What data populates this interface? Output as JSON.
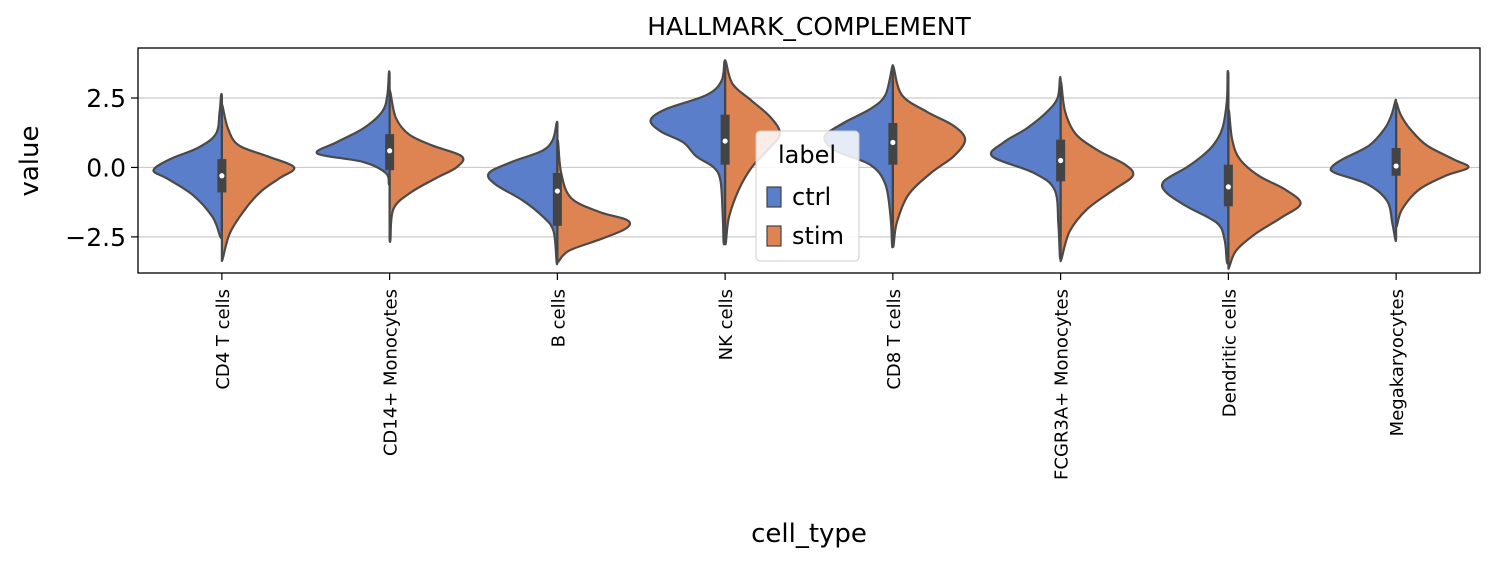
{
  "chart_data": {
    "type": "violin",
    "title": "HALLMARK_COMPLEMENT",
    "xlabel": "cell_type",
    "ylabel": "value",
    "ylim": [
      -3.8,
      4.3
    ],
    "yticks": [
      -2.5,
      0.0,
      2.5
    ],
    "ytick_labels": [
      "−2.5",
      "0.0",
      "2.5"
    ],
    "grid": "horizontal",
    "split": true,
    "categories": [
      "CD4 T cells",
      "CD14+ Monocytes",
      "B cells",
      "NK cells",
      "CD8 T cells",
      "FCGR3A+ Monocytes",
      "Dendritic cells",
      "Megakaryocytes"
    ],
    "legend": {
      "title": "label",
      "position": "center",
      "entries": [
        {
          "name": "ctrl",
          "color": "#5a7ec9"
        },
        {
          "name": "stim",
          "color": "#dd8452"
        }
      ]
    },
    "series": [
      {
        "name": "ctrl",
        "color": "#5a7ec9",
        "violins": [
          {
            "min": -2.5,
            "max": 2.6,
            "profile": [
              [
                -2.5,
                0.02
              ],
              [
                -1.8,
                0.12
              ],
              [
                -1.0,
                0.38
              ],
              [
                -0.4,
                0.72
              ],
              [
                -0.1,
                0.9
              ],
              [
                0.3,
                0.68
              ],
              [
                0.7,
                0.32
              ],
              [
                1.2,
                0.08
              ],
              [
                2.0,
                0.03
              ],
              [
                2.6,
                0.01
              ]
            ]
          },
          {
            "min": -0.6,
            "max": 3.4,
            "profile": [
              [
                -0.6,
                0.01
              ],
              [
                -0.2,
                0.05
              ],
              [
                0.2,
                0.35
              ],
              [
                0.5,
                0.95
              ],
              [
                0.9,
                0.7
              ],
              [
                1.4,
                0.35
              ],
              [
                2.0,
                0.1
              ],
              [
                2.6,
                0.03
              ],
              [
                3.4,
                0.01
              ]
            ]
          },
          {
            "min": -3.4,
            "max": 1.6,
            "profile": [
              [
                -3.4,
                0.01
              ],
              [
                -2.3,
                0.05
              ],
              [
                -1.8,
                0.18
              ],
              [
                -1.2,
                0.45
              ],
              [
                -0.6,
                0.82
              ],
              [
                -0.2,
                0.9
              ],
              [
                0.2,
                0.6
              ],
              [
                0.6,
                0.2
              ],
              [
                1.0,
                0.06
              ],
              [
                1.6,
                0.01
              ]
            ]
          },
          {
            "min": -2.7,
            "max": 3.8,
            "profile": [
              [
                -2.7,
                0.02
              ],
              [
                -1.8,
                0.03
              ],
              [
                -0.5,
                0.06
              ],
              [
                0.0,
                0.15
              ],
              [
                0.4,
                0.38
              ],
              [
                0.9,
                0.55
              ],
              [
                1.3,
                0.85
              ],
              [
                1.7,
                0.98
              ],
              [
                2.1,
                0.78
              ],
              [
                2.6,
                0.25
              ],
              [
                3.1,
                0.05
              ],
              [
                3.8,
                0.01
              ]
            ]
          },
          {
            "min": -2.8,
            "max": 3.6,
            "profile": [
              [
                -2.8,
                0.01
              ],
              [
                -1.8,
                0.03
              ],
              [
                -0.6,
                0.1
              ],
              [
                0.1,
                0.3
              ],
              [
                0.6,
                0.75
              ],
              [
                1.1,
                0.9
              ],
              [
                1.6,
                0.65
              ],
              [
                2.1,
                0.3
              ],
              [
                2.6,
                0.1
              ],
              [
                3.6,
                0.01
              ]
            ]
          },
          {
            "min": -3.2,
            "max": 3.2,
            "profile": [
              [
                -3.2,
                0.01
              ],
              [
                -2.0,
                0.03
              ],
              [
                -0.8,
                0.08
              ],
              [
                -0.2,
                0.35
              ],
              [
                0.4,
                0.9
              ],
              [
                0.9,
                0.75
              ],
              [
                1.4,
                0.45
              ],
              [
                2.0,
                0.18
              ],
              [
                2.5,
                0.04
              ],
              [
                3.2,
                0.01
              ]
            ]
          },
          {
            "min": -3.4,
            "max": 3.4,
            "profile": [
              [
                -3.4,
                0.02
              ],
              [
                -2.6,
                0.05
              ],
              [
                -2.0,
                0.15
              ],
              [
                -1.4,
                0.55
              ],
              [
                -0.9,
                0.82
              ],
              [
                -0.5,
                0.85
              ],
              [
                0.0,
                0.55
              ],
              [
                0.4,
                0.35
              ],
              [
                0.8,
                0.2
              ],
              [
                1.4,
                0.08
              ],
              [
                2.4,
                0.02
              ],
              [
                3.4,
                0.01
              ]
            ]
          },
          {
            "min": -2.6,
            "max": 2.4,
            "profile": [
              [
                -2.6,
                0.01
              ],
              [
                -2.0,
                0.05
              ],
              [
                -1.2,
                0.12
              ],
              [
                -0.6,
                0.38
              ],
              [
                -0.2,
                0.8
              ],
              [
                0.0,
                0.85
              ],
              [
                0.3,
                0.7
              ],
              [
                0.8,
                0.35
              ],
              [
                1.4,
                0.15
              ],
              [
                1.9,
                0.06
              ],
              [
                2.4,
                0.01
              ]
            ]
          }
        ]
      },
      {
        "name": "stim",
        "color": "#dd8452",
        "violins": [
          {
            "min": -3.3,
            "max": 2.2,
            "profile": [
              [
                -3.3,
                0.01
              ],
              [
                -2.4,
                0.1
              ],
              [
                -1.6,
                0.28
              ],
              [
                -0.9,
                0.5
              ],
              [
                -0.4,
                0.75
              ],
              [
                0.0,
                0.95
              ],
              [
                0.4,
                0.6
              ],
              [
                0.8,
                0.22
              ],
              [
                1.4,
                0.08
              ],
              [
                2.2,
                0.01
              ]
            ]
          },
          {
            "min": -2.6,
            "max": 2.7,
            "profile": [
              [
                -2.6,
                0.01
              ],
              [
                -1.5,
                0.05
              ],
              [
                -0.9,
                0.28
              ],
              [
                -0.4,
                0.6
              ],
              [
                0.0,
                0.88
              ],
              [
                0.4,
                0.95
              ],
              [
                0.8,
                0.55
              ],
              [
                1.2,
                0.25
              ],
              [
                1.8,
                0.08
              ],
              [
                2.7,
                0.01
              ]
            ]
          },
          {
            "min": -3.4,
            "max": 0.9,
            "profile": [
              [
                -3.4,
                0.01
              ],
              [
                -3.0,
                0.15
              ],
              [
                -2.6,
                0.55
              ],
              [
                -2.2,
                0.9
              ],
              [
                -1.9,
                0.92
              ],
              [
                -1.6,
                0.55
              ],
              [
                -1.1,
                0.18
              ],
              [
                -0.2,
                0.05
              ],
              [
                0.9,
                0.01
              ]
            ]
          },
          {
            "min": -2.7,
            "max": 3.8,
            "profile": [
              [
                -2.7,
                0.01
              ],
              [
                -1.8,
                0.05
              ],
              [
                -0.8,
                0.18
              ],
              [
                0.0,
                0.35
              ],
              [
                0.6,
                0.55
              ],
              [
                1.2,
                0.72
              ],
              [
                1.8,
                0.6
              ],
              [
                2.4,
                0.35
              ],
              [
                3.0,
                0.1
              ],
              [
                3.8,
                0.01
              ]
            ]
          },
          {
            "min": -2.8,
            "max": 3.6,
            "profile": [
              [
                -2.8,
                0.01
              ],
              [
                -2.0,
                0.05
              ],
              [
                -1.0,
                0.2
              ],
              [
                -0.2,
                0.5
              ],
              [
                0.4,
                0.8
              ],
              [
                1.0,
                0.95
              ],
              [
                1.5,
                0.8
              ],
              [
                2.0,
                0.45
              ],
              [
                2.6,
                0.12
              ],
              [
                3.6,
                0.01
              ]
            ]
          },
          {
            "min": -3.3,
            "max": 3.0,
            "profile": [
              [
                -3.3,
                0.01
              ],
              [
                -2.3,
                0.12
              ],
              [
                -1.5,
                0.35
              ],
              [
                -0.8,
                0.7
              ],
              [
                -0.3,
                0.95
              ],
              [
                0.1,
                0.85
              ],
              [
                0.6,
                0.5
              ],
              [
                1.2,
                0.2
              ],
              [
                2.0,
                0.06
              ],
              [
                3.0,
                0.01
              ]
            ]
          },
          {
            "min": -3.6,
            "max": 2.0,
            "profile": [
              [
                -3.6,
                0.01
              ],
              [
                -3.0,
                0.1
              ],
              [
                -2.4,
                0.35
              ],
              [
                -1.8,
                0.7
              ],
              [
                -1.3,
                0.95
              ],
              [
                -0.8,
                0.75
              ],
              [
                -0.3,
                0.4
              ],
              [
                0.3,
                0.15
              ],
              [
                1.0,
                0.05
              ],
              [
                2.0,
                0.01
              ]
            ]
          },
          {
            "min": -2.1,
            "max": 2.3,
            "profile": [
              [
                -2.1,
                0.01
              ],
              [
                -1.5,
                0.08
              ],
              [
                -0.8,
                0.3
              ],
              [
                -0.3,
                0.65
              ],
              [
                0.0,
                0.95
              ],
              [
                0.3,
                0.75
              ],
              [
                0.8,
                0.4
              ],
              [
                1.4,
                0.18
              ],
              [
                1.9,
                0.06
              ],
              [
                2.3,
                0.01
              ]
            ]
          }
        ]
      }
    ],
    "boxes": [
      {
        "q1": -0.9,
        "q3": 0.3,
        "median": -0.3,
        "wlow": -2.3,
        "whigh": 1.5
      },
      {
        "q1": -0.1,
        "q3": 1.2,
        "median": 0.6,
        "wlow": -1.5,
        "whigh": 2.8
      },
      {
        "q1": -2.1,
        "q3": -0.2,
        "median": -0.85,
        "wlow": -3.0,
        "whigh": 1.0
      },
      {
        "q1": 0.1,
        "q3": 1.9,
        "median": 0.95,
        "wlow": -2.0,
        "whigh": 3.5
      },
      {
        "q1": 0.1,
        "q3": 1.6,
        "median": 0.9,
        "wlow": -2.0,
        "whigh": 3.2
      },
      {
        "q1": -0.5,
        "q3": 1.0,
        "median": 0.25,
        "wlow": -2.5,
        "whigh": 2.9
      },
      {
        "q1": -1.4,
        "q3": 0.1,
        "median": -0.7,
        "wlow": -3.2,
        "whigh": 2.8
      },
      {
        "q1": -0.3,
        "q3": 0.7,
        "median": 0.05,
        "wlow": -1.8,
        "whigh": 2.0
      }
    ]
  }
}
